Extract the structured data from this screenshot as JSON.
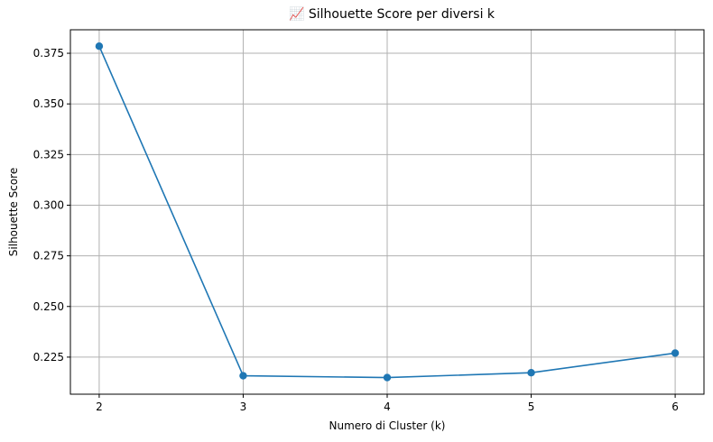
{
  "chart_data": {
    "type": "line",
    "title": "📈 Silhouette Score per diversi k",
    "xlabel": "Numero di Cluster (k)",
    "ylabel": "Silhouette Score",
    "x": [
      2,
      3,
      4,
      5,
      6
    ],
    "series": [
      {
        "values": [
          0.3785,
          0.2158,
          0.2149,
          0.2173,
          0.227
        ],
        "color": "#1f77b4",
        "marker": "circle"
      }
    ],
    "xticks": [
      2,
      3,
      4,
      5,
      6
    ],
    "xtick_labels": [
      "2",
      "3",
      "4",
      "5",
      "6"
    ],
    "yticks": [
      0.225,
      0.25,
      0.275,
      0.3,
      0.325,
      0.35,
      0.375
    ],
    "ytick_labels": [
      "0.225",
      "0.250",
      "0.275",
      "0.300",
      "0.325",
      "0.350",
      "0.375"
    ],
    "xlim": [
      1.8,
      6.2
    ],
    "ylim": [
      0.2067,
      0.3866
    ],
    "grid": true,
    "legend": "none"
  }
}
